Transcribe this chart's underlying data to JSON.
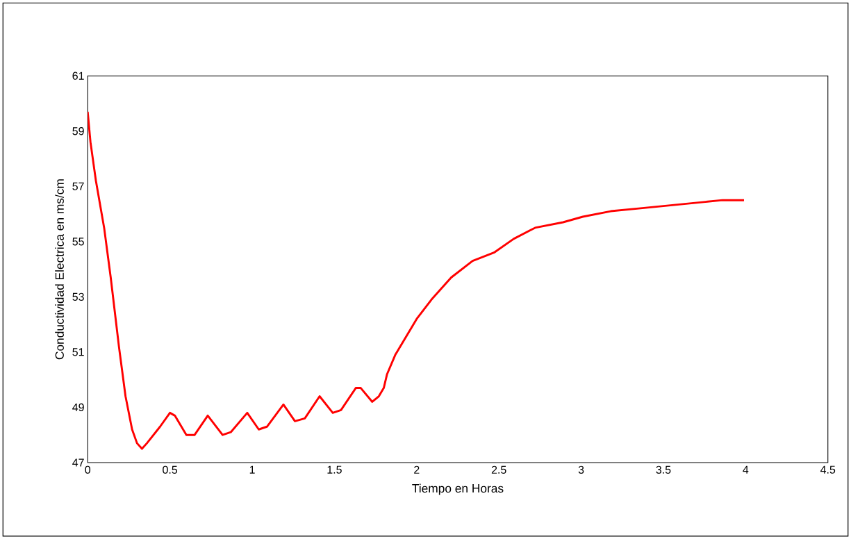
{
  "chart_data": {
    "type": "line",
    "xlabel": "Tiempo en Horas",
    "ylabel": "Conductividad Electrica en ms/cm",
    "xlim": [
      0,
      4.5
    ],
    "xticks": [
      0,
      0.5,
      1,
      1.5,
      2,
      2.5,
      3,
      3.5,
      4,
      4.5
    ],
    "ylim": [
      47,
      61
    ],
    "yticks": [
      47,
      49,
      51,
      53,
      55,
      57,
      59,
      61
    ],
    "grid": false,
    "marker": "none",
    "line_style": "solid",
    "series": [
      {
        "color": "#ff0000",
        "x": [
          0,
          0.017,
          0.05,
          0.1,
          0.14,
          0.19,
          0.23,
          0.27,
          0.3,
          0.33,
          0.36,
          0.44,
          0.5,
          0.53,
          0.6,
          0.65,
          0.73,
          0.82,
          0.87,
          0.97,
          1.04,
          1.09,
          1.19,
          1.26,
          1.32,
          1.41,
          1.49,
          1.54,
          1.63,
          1.66,
          1.73,
          1.77,
          1.8,
          1.82,
          1.87,
          2.0,
          2.09,
          2.21,
          2.34,
          2.47,
          2.59,
          2.72,
          2.89,
          3.01,
          3.18,
          3.35,
          3.52,
          3.69,
          3.86,
          3.99
        ],
        "values": [
          59.7,
          58.6,
          57.2,
          55.5,
          53.7,
          51.2,
          49.4,
          48.2,
          47.7,
          47.5,
          47.7,
          48.3,
          48.8,
          48.7,
          48.0,
          48.0,
          48.7,
          48.0,
          48.1,
          48.8,
          48.2,
          48.3,
          49.1,
          48.5,
          48.6,
          49.4,
          48.8,
          48.9,
          49.7,
          49.7,
          49.2,
          49.4,
          49.7,
          50.2,
          50.9,
          52.2,
          52.9,
          53.7,
          54.3,
          54.6,
          55.1,
          55.5,
          55.7,
          55.9,
          56.1,
          56.2,
          56.3,
          56.4,
          56.5,
          56.5
        ]
      }
    ]
  }
}
